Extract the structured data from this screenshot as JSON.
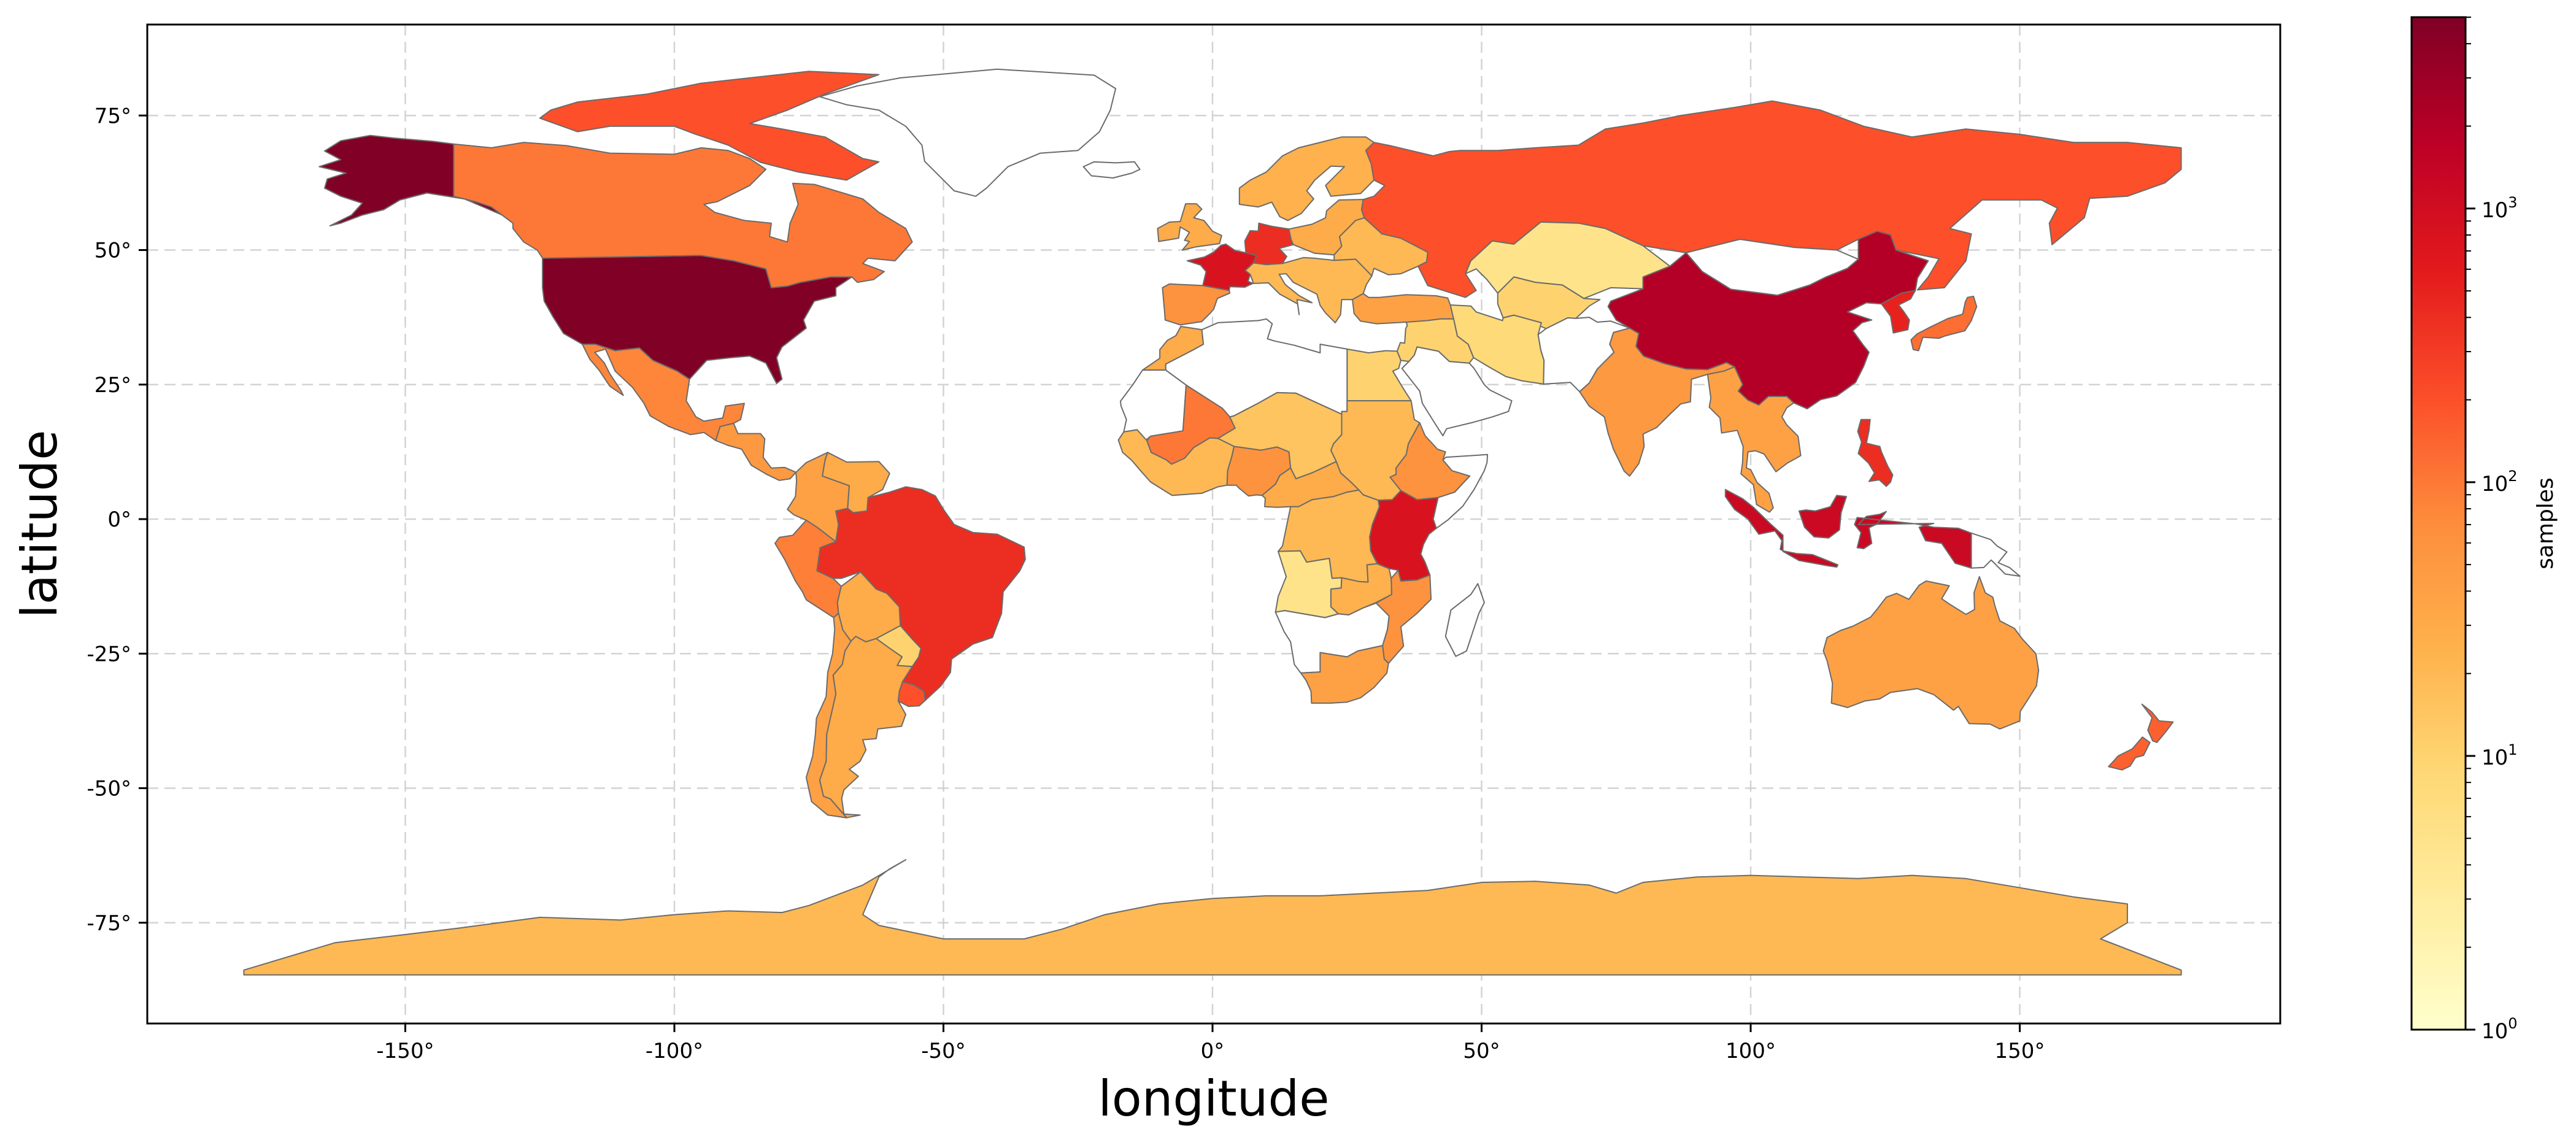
{
  "chart_data": {
    "type": "choropleth",
    "projection": "plate-carree",
    "xlabel": "longitude",
    "ylabel": "latitude",
    "xlim": [
      -180,
      180
    ],
    "ylim": [
      -90,
      90
    ],
    "xticks": [
      -150,
      -100,
      -50,
      0,
      50,
      100,
      150
    ],
    "yticks": [
      -75,
      -50,
      -25,
      0,
      25,
      50,
      75
    ],
    "xtick_labels": [
      "-150°",
      "-100°",
      "-50°",
      "0°",
      "50°",
      "100°",
      "150°"
    ],
    "ytick_labels": [
      "-75°",
      "-50°",
      "-25°",
      "0°",
      "25°",
      "50°",
      "75°"
    ],
    "grid": true,
    "colorbar": {
      "label": "samples",
      "scale": "log",
      "colormap": "YlOrRd",
      "range": [
        1,
        5000
      ],
      "ticks": [
        1,
        10,
        100,
        1000
      ],
      "tick_labels": [
        {
          "base": "10",
          "exp": "0"
        },
        {
          "base": "10",
          "exp": "1"
        },
        {
          "base": "10",
          "exp": "2"
        },
        {
          "base": "10",
          "exp": "3"
        }
      ],
      "stops": [
        "#ffffcc",
        "#ffeda0",
        "#fed976",
        "#feb24c",
        "#fd8d3c",
        "#fc4e2a",
        "#e31a1c",
        "#bd0026",
        "#800026"
      ]
    },
    "no_data_color": "#ffffff",
    "regions": [
      {
        "name": "United States",
        "value": 5000
      },
      {
        "name": "Alaska",
        "value": 5000
      },
      {
        "name": "Canada",
        "value": 100
      },
      {
        "name": "Canadian Arctic Islands",
        "value": 200
      },
      {
        "name": "Mexico",
        "value": 80
      },
      {
        "name": "Central America",
        "value": 50
      },
      {
        "name": "Colombia",
        "value": 40
      },
      {
        "name": "Venezuela",
        "value": 30
      },
      {
        "name": "Peru",
        "value": 90
      },
      {
        "name": "Bolivia",
        "value": 30
      },
      {
        "name": "Brazil",
        "value": 400
      },
      {
        "name": "Paraguay",
        "value": 10
      },
      {
        "name": "Uruguay",
        "value": 200
      },
      {
        "name": "Argentina",
        "value": 30
      },
      {
        "name": "Chile",
        "value": 40
      },
      {
        "name": "Greenland",
        "value": null
      },
      {
        "name": "Iceland",
        "value": null
      },
      {
        "name": "Ireland & UK",
        "value": 30
      },
      {
        "name": "Spain & Portugal",
        "value": 60
      },
      {
        "name": "France",
        "value": 800
      },
      {
        "name": "Germany",
        "value": 400
      },
      {
        "name": "Scandinavia",
        "value": 25
      },
      {
        "name": "Poland & Baltics",
        "value": 30
      },
      {
        "name": "Balkans & Italy",
        "value": 20
      },
      {
        "name": "Ukraine",
        "value": 20
      },
      {
        "name": "Russia",
        "value": 200
      },
      {
        "name": "Kazakhstan",
        "value": 5
      },
      {
        "name": "Uzbekistan & Turkmenistan",
        "value": 10
      },
      {
        "name": "Turkey",
        "value": 40
      },
      {
        "name": "Iran",
        "value": 8
      },
      {
        "name": "Saudi Arabia",
        "value": null
      },
      {
        "name": "Middle East (Iraq, Syria)",
        "value": 10
      },
      {
        "name": "Egypt",
        "value": 10
      },
      {
        "name": "North Africa (Algeria, Libya)",
        "value": null
      },
      {
        "name": "Morocco",
        "value": 30
      },
      {
        "name": "Western Sahara & Mauritania",
        "value": null
      },
      {
        "name": "Mali",
        "value": 100
      },
      {
        "name": "Niger & Chad",
        "value": 15
      },
      {
        "name": "Sudan",
        "value": 20
      },
      {
        "name": "Ethiopia",
        "value": 60
      },
      {
        "name": "Somalia",
        "value": null
      },
      {
        "name": "West Africa coast",
        "value": 20
      },
      {
        "name": "Nigeria",
        "value": 60
      },
      {
        "name": "Central African Republic",
        "value": 30
      },
      {
        "name": "DR Congo",
        "value": 20
      },
      {
        "name": "Kenya & Tanzania",
        "value": 800
      },
      {
        "name": "Angola",
        "value": 5
      },
      {
        "name": "Zambia",
        "value": 25
      },
      {
        "name": "Mozambique",
        "value": 60
      },
      {
        "name": "Namibia & Botswana",
        "value": null
      },
      {
        "name": "South Africa",
        "value": 40
      },
      {
        "name": "Madagascar",
        "value": null
      },
      {
        "name": "India",
        "value": 50
      },
      {
        "name": "Pakistan & Afghanistan",
        "value": null
      },
      {
        "name": "Mongolia",
        "value": null
      },
      {
        "name": "China",
        "value": 2000
      },
      {
        "name": "Korea",
        "value": 500
      },
      {
        "name": "Japan",
        "value": 120
      },
      {
        "name": "Southeast Asia (Indochina)",
        "value": 40
      },
      {
        "name": "Indonesia",
        "value": 1200
      },
      {
        "name": "Philippines",
        "value": 400
      },
      {
        "name": "Papua New Guinea",
        "value": null
      },
      {
        "name": "Australia",
        "value": 40
      },
      {
        "name": "New Zealand",
        "value": 150
      },
      {
        "name": "Antarctica",
        "value": 20
      }
    ]
  }
}
